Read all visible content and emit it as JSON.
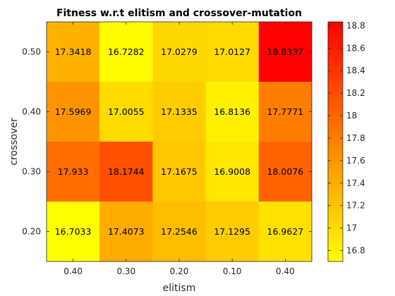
{
  "chart_data": {
    "type": "heatmap",
    "title": "Fitness w.r.t elitism and crossover-mutation",
    "xlabel": "elitism",
    "ylabel": "crossover",
    "x_categories": [
      "0.40",
      "0.30",
      "0.20",
      "0.10",
      "0.40"
    ],
    "y_categories": [
      "0.50",
      "0.40",
      "0.30",
      "0.20"
    ],
    "values": [
      [
        "17.3418",
        "16.7282",
        "17.0279",
        "17.0127",
        "18.8337"
      ],
      [
        "17.5969",
        "17.0055",
        "17.1335",
        "16.8136",
        "17.7771"
      ],
      [
        "17.933",
        "18.1744",
        "17.1675",
        "16.9008",
        "18.0076"
      ],
      [
        "16.7033",
        "17.4073",
        "17.2546",
        "17.1295",
        "16.9627"
      ]
    ],
    "colormap": "autumn",
    "colormap_low": "#ffff00",
    "colormap_high": "#ff0000",
    "color_range": [
      16.7033,
      18.8337
    ],
    "colorbar_ticks": [
      "16.8",
      "17",
      "17.2",
      "17.4",
      "17.6",
      "17.8",
      "18",
      "18.2",
      "18.4",
      "18.6",
      "18.8"
    ],
    "colorbar_position": "right"
  }
}
